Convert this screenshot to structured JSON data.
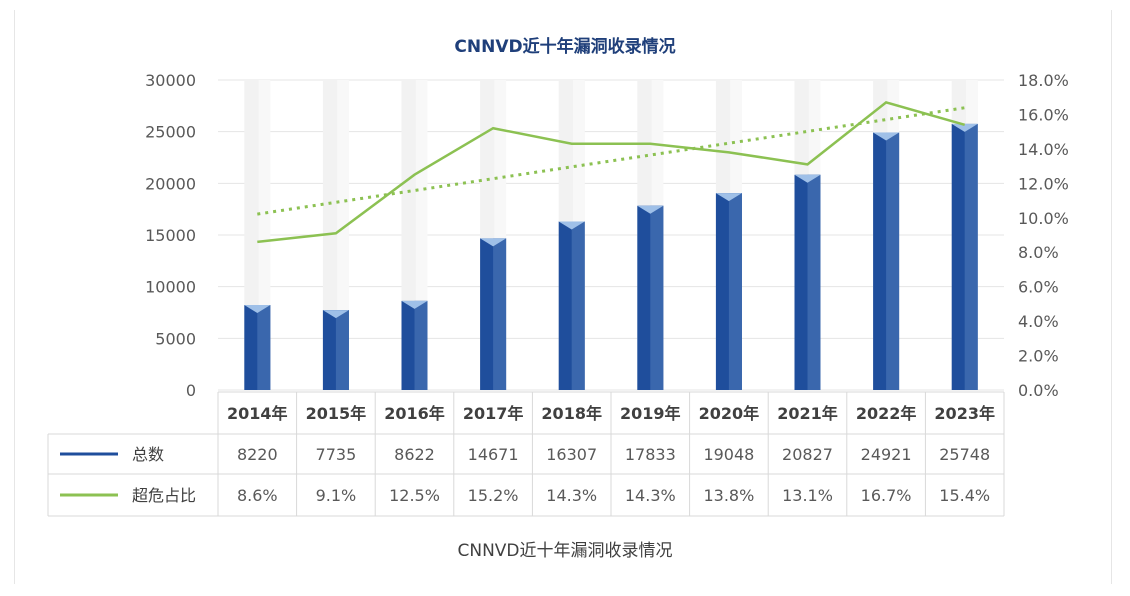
{
  "caption": "CNNVD近十年漏洞收录情况",
  "chart_data": {
    "type": "bar",
    "title": "CNNVD近十年漏洞收录情况",
    "categories": [
      "2014年",
      "2015年",
      "2016年",
      "2017年",
      "2018年",
      "2019年",
      "2020年",
      "2021年",
      "2022年",
      "2023年"
    ],
    "series": [
      {
        "name": "总数",
        "type": "bar",
        "axis": "left",
        "color": "#1f4e9c",
        "values": [
          8220,
          7735,
          8622,
          14671,
          16307,
          17833,
          19048,
          20827,
          24921,
          25748
        ]
      },
      {
        "name": "超危占比",
        "type": "line",
        "axis": "right",
        "color": "#8cc152",
        "values": [
          8.6,
          9.1,
          12.5,
          15.2,
          14.3,
          14.3,
          13.8,
          13.1,
          16.7,
          15.4
        ]
      }
    ],
    "table_labels": [
      [
        "8220",
        "7735",
        "8622",
        "14671",
        "16307",
        "17833",
        "19048",
        "20827",
        "24921",
        "25748"
      ],
      [
        "8.6%",
        "9.1%",
        "12.5%",
        "15.2%",
        "14.3%",
        "14.3%",
        "13.8%",
        "13.1%",
        "16.7%",
        "15.4%"
      ]
    ],
    "left_axis": {
      "ticks": [
        "0",
        "5000",
        "10000",
        "15000",
        "20000",
        "25000",
        "30000"
      ],
      "ylim": [
        0,
        30000
      ]
    },
    "right_axis": {
      "ticks": [
        "0.0%",
        "2.0%",
        "4.0%",
        "6.0%",
        "8.0%",
        "10.0%",
        "12.0%",
        "14.0%",
        "16.0%",
        "18.0%"
      ],
      "ylim": [
        0,
        18
      ]
    },
    "trendline": {
      "series": "超危占比",
      "style": "dotted linear"
    },
    "grid": true,
    "legend": "data-table"
  }
}
